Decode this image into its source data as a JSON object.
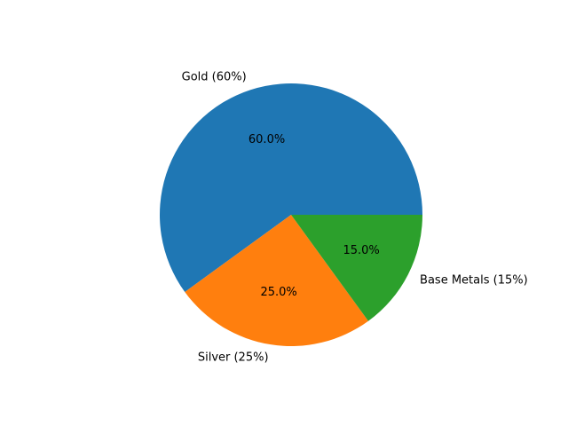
{
  "chart_data": {
    "type": "pie",
    "categories": [
      "Gold (60%)",
      "Silver (25%)",
      "Base Metals (15%)"
    ],
    "values": [
      60,
      25,
      15
    ],
    "percent_labels": [
      "60.0%",
      "25.0%",
      "15.0%"
    ],
    "colors": [
      "#1f77b4",
      "#ff7f0e",
      "#2ca02c"
    ],
    "start_angle_deg": 0,
    "direction": "counterclockwise"
  }
}
